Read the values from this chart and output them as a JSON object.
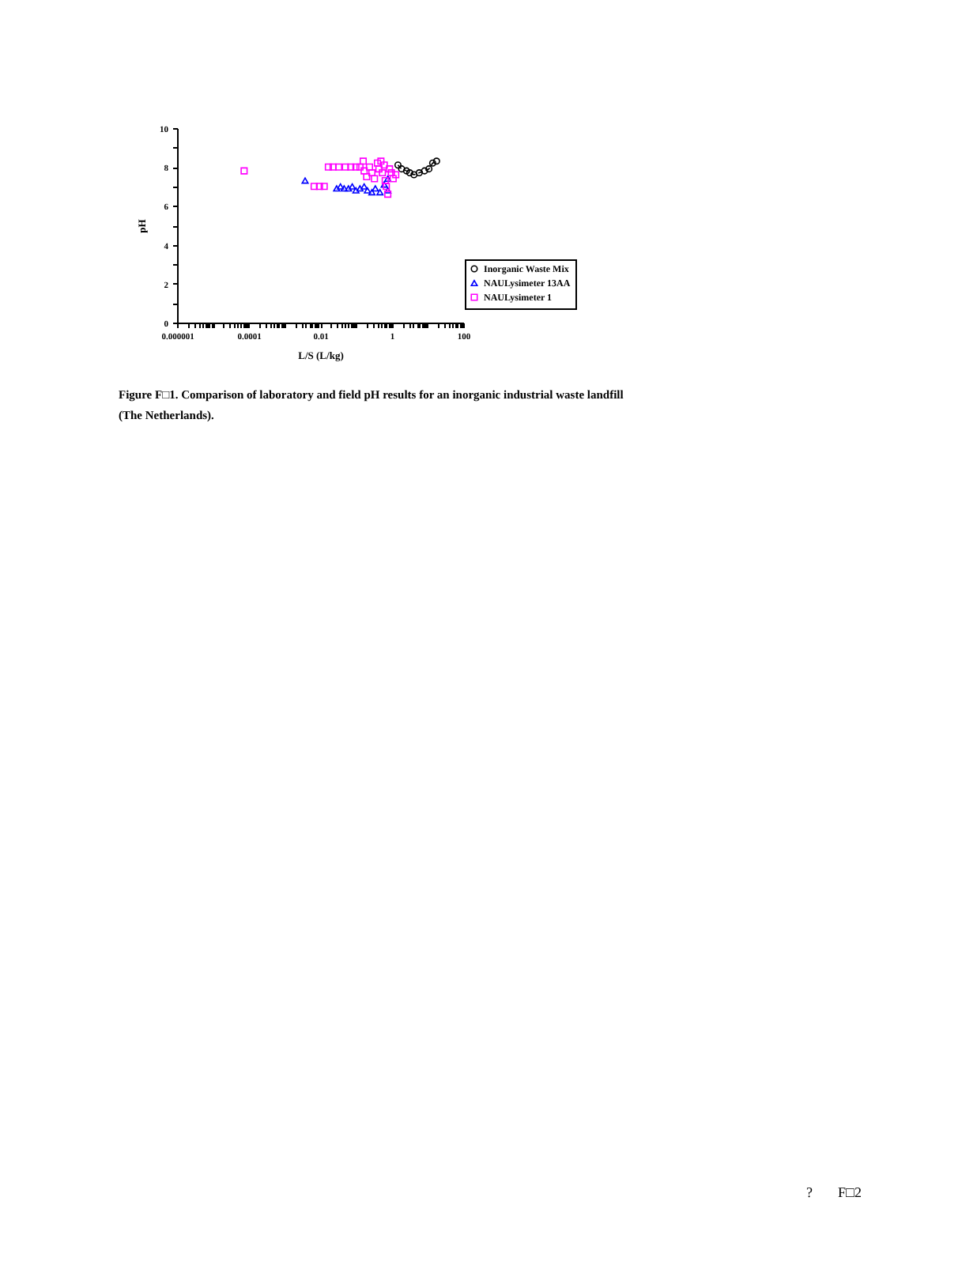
{
  "chart_data": {
    "type": "scatter",
    "xlabel": "L/S (L/kg)",
    "ylabel": "pH",
    "log": "x",
    "xlim": [
      1e-06,
      100
    ],
    "xticks": [
      {
        "value": 1e-06,
        "label": "0.000001"
      },
      {
        "value": 2e-06,
        "label": null
      },
      {
        "value": 3e-06,
        "label": null
      },
      {
        "value": 4e-06,
        "label": null
      },
      {
        "value": 5e-06,
        "label": null
      },
      {
        "value": 6e-06,
        "label": null
      },
      {
        "value": 7e-06,
        "label": null
      },
      {
        "value": 8e-06,
        "label": null
      },
      {
        "value": 9e-06,
        "label": null
      },
      {
        "value": 1e-05,
        "label": null
      },
      {
        "value": 2e-05,
        "label": null
      },
      {
        "value": 3e-05,
        "label": null
      },
      {
        "value": 4e-05,
        "label": null
      },
      {
        "value": 5e-05,
        "label": null
      },
      {
        "value": 6e-05,
        "label": null
      },
      {
        "value": 7e-05,
        "label": null
      },
      {
        "value": 8e-05,
        "label": null
      },
      {
        "value": 9e-05,
        "label": null
      },
      0.0001,
      {
        "value": 0.0002,
        "label": null
      },
      {
        "value": 0.0003,
        "label": null
      },
      {
        "value": 0.0004,
        "label": null
      },
      {
        "value": 0.0005,
        "label": null
      },
      {
        "value": 0.0006,
        "label": null
      },
      {
        "value": 0.0007,
        "label": null
      },
      {
        "value": 0.0008,
        "label": null
      },
      {
        "value": 0.0009,
        "label": null
      },
      {
        "value": 0.001,
        "label": null
      },
      {
        "value": 0.002,
        "label": null
      },
      {
        "value": 0.003,
        "label": null
      },
      {
        "value": 0.004,
        "label": null
      },
      {
        "value": 0.005,
        "label": null
      },
      {
        "value": 0.006,
        "label": null
      },
      {
        "value": 0.007,
        "label": null
      },
      {
        "value": 0.008,
        "label": null
      },
      {
        "value": 0.009,
        "label": null
      },
      0.01,
      {
        "value": 0.02,
        "label": null
      },
      {
        "value": 0.03,
        "label": null
      },
      {
        "value": 0.04,
        "label": null
      },
      {
        "value": 0.05,
        "label": null
      },
      {
        "value": 0.06,
        "label": null
      },
      {
        "value": 0.07,
        "label": null
      },
      {
        "value": 0.08,
        "label": null
      },
      {
        "value": 0.09,
        "label": null
      },
      {
        "value": 0.1,
        "label": null
      },
      {
        "value": 0.2,
        "label": null
      },
      {
        "value": 0.3,
        "label": null
      },
      {
        "value": 0.4,
        "label": null
      },
      {
        "value": 0.5,
        "label": null
      },
      {
        "value": 0.6,
        "label": null
      },
      {
        "value": 0.7,
        "label": null
      },
      {
        "value": 0.8,
        "label": null
      },
      {
        "value": 0.9,
        "label": null
      },
      1,
      {
        "value": 2,
        "label": null
      },
      {
        "value": 3,
        "label": null
      },
      {
        "value": 4,
        "label": null
      },
      {
        "value": 5,
        "label": null
      },
      {
        "value": 6,
        "label": null
      },
      {
        "value": 7,
        "label": null
      },
      {
        "value": 8,
        "label": null
      },
      {
        "value": 9,
        "label": null
      },
      {
        "value": 10,
        "label": null
      },
      {
        "value": 20,
        "label": null
      },
      {
        "value": 30,
        "label": null
      },
      {
        "value": 40,
        "label": null
      },
      {
        "value": 50,
        "label": null
      },
      {
        "value": 60,
        "label": null
      },
      {
        "value": 70,
        "label": null
      },
      {
        "value": 80,
        "label": null
      },
      {
        "value": 90,
        "label": null
      },
      100
    ],
    "ylim": [
      0,
      10
    ],
    "yticks": [
      0,
      {
        "value": 1,
        "label": null
      },
      2,
      {
        "value": 3,
        "label": null
      },
      4,
      {
        "value": 5,
        "label": null
      },
      6,
      {
        "value": 7,
        "label": null
      },
      8,
      {
        "value": 9,
        "label": null
      },
      10
    ],
    "legend": "right",
    "series": [
      {
        "name": "Inorganic Waste Mix",
        "type": "line",
        "marker": "circle",
        "line_style": "dashed",
        "color": "#000000",
        "x": [
          1.5,
          1.9,
          2.6,
          3.2,
          4.2,
          5.9,
          8.3,
          11,
          14,
          18
        ],
        "values": [
          8.1,
          7.9,
          7.8,
          7.7,
          7.6,
          7.7,
          7.8,
          7.9,
          8.2,
          8.3
        ]
      },
      {
        "name": "NAULysimeter 13AA",
        "marker": "triangle",
        "color": "#0000ff",
        "x": [
          0.0038,
          0.029,
          0.037,
          0.047,
          0.062,
          0.079,
          0.1,
          0.13,
          0.17,
          0.21,
          0.28,
          0.35,
          0.47,
          0.62,
          0.78,
          0.78
        ],
        "values": [
          7.3,
          6.9,
          7.0,
          6.9,
          6.9,
          7.0,
          6.8,
          6.9,
          7.0,
          6.8,
          6.7,
          6.9,
          6.7,
          7.1,
          7.4,
          6.8
        ]
      },
      {
        "name": "NAULysimeter 1",
        "marker": "square",
        "color": "#ff00ff",
        "x": [
          7.5e-05,
          0.0068,
          0.0096,
          0.013,
          0.017,
          0.023,
          0.033,
          0.051,
          0.072,
          0.1,
          0.13,
          0.16,
          0.17,
          0.2,
          0.24,
          0.28,
          0.33,
          0.4,
          0.44,
          0.5,
          0.55,
          0.62,
          0.66,
          0.71,
          0.78,
          0.87,
          0.98,
          1.1,
          1.3
        ],
        "values": [
          7.8,
          7.0,
          7.0,
          7.0,
          8.0,
          8.0,
          8.0,
          8.0,
          8.0,
          8.0,
          8.0,
          8.3,
          7.8,
          7.5,
          8.0,
          7.7,
          7.4,
          8.2,
          7.9,
          8.3,
          7.7,
          8.1,
          7.3,
          7.0,
          6.6,
          7.9,
          7.7,
          7.4,
          7.6
        ]
      }
    ],
    "annotations": [
      "Figure F□1. Comparison of laboratory and field pH results for an inorganic industrial waste landfill (The Netherlands).",
      "?",
      "F□2"
    ]
  }
}
